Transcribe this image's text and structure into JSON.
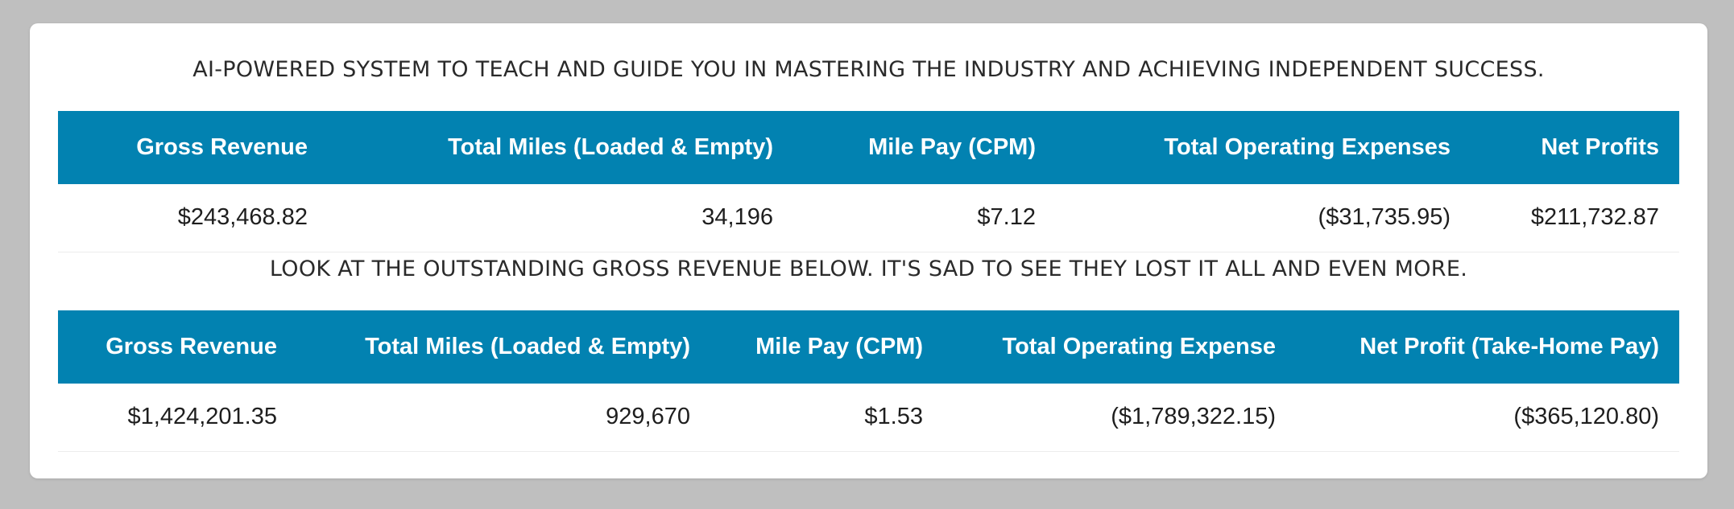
{
  "headline_top": "AI-POWERED SYSTEM TO TEACH AND GUIDE YOU IN MASTERING THE INDUSTRY AND ACHIEVING INDEPENDENT SUCCESS.",
  "table_one": {
    "headers": [
      "Gross Revenue",
      "Total Miles (Loaded & Empty)",
      "Mile Pay (CPM)",
      "Total Operating Expenses",
      "Net Profits"
    ],
    "row": [
      "$243,468.82",
      "34,196",
      "$7.12",
      "($31,735.95)",
      "$211,732.87"
    ]
  },
  "headline_middle": "LOOK AT THE OUTSTANDING GROSS REVENUE BELOW. IT'S SAD TO SEE THEY LOST IT ALL AND EVEN MORE.",
  "table_two": {
    "headers": [
      "Gross Revenue",
      "Total Miles (Loaded & Empty)",
      "Mile Pay (CPM)",
      "Total Operating Expense",
      "Net Profit (Take-Home Pay)"
    ],
    "row": [
      "$1,424,201.35",
      "929,670",
      "$1.53",
      "($1,789,322.15)",
      "($365,120.80)"
    ]
  },
  "colors": {
    "header_background": "#0282b1",
    "header_text": "#ffffff",
    "page_background": "#bfbfbf",
    "card_background": "#ffffff"
  }
}
